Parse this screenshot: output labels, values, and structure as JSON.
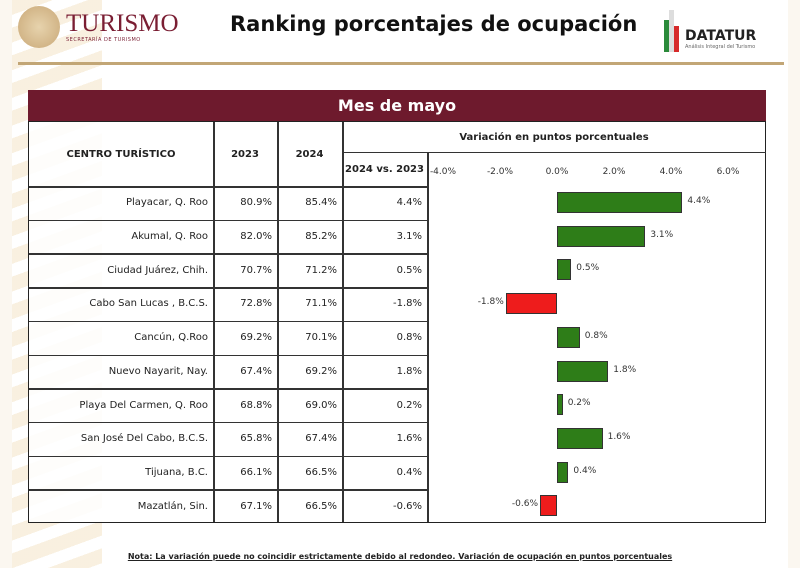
{
  "header": {
    "logo_title": "TURISMO",
    "logo_subtitle": "SECRETARÍA DE TURISMO",
    "title": "Ranking porcentajes de ocupación",
    "datatur_name": "DATATUR",
    "datatur_subtitle": "Análisis Integral del Turismo"
  },
  "table": {
    "band": "Mes de mayo",
    "col_center": "CENTRO TURÍSTICO",
    "col_2023": "2023",
    "col_2024": "2024",
    "col_variation": "Variación en puntos porcentuales",
    "col_diff": "2024 vs. 2023"
  },
  "chart_data": {
    "type": "bar",
    "orientation": "horizontal",
    "categories": [
      "Playacar, Q. Roo",
      "Akumal, Q. Roo",
      "Ciudad Juárez, Chih.",
      "Cabo San Lucas , B.C.S.",
      "Cancún, Q.Roo",
      "Nuevo Nayarit, Nay.",
      "Playa Del Carmen, Q. Roo",
      "San José Del Cabo, B.C.S.",
      "Tijuana, B.C.",
      "Mazatlán, Sin."
    ],
    "v2023": [
      "80.9%",
      "82.0%",
      "70.7%",
      "72.8%",
      "69.2%",
      "67.4%",
      "68.8%",
      "65.8%",
      "66.1%",
      "67.1%"
    ],
    "v2024": [
      "85.4%",
      "85.2%",
      "71.2%",
      "71.1%",
      "70.1%",
      "69.2%",
      "69.0%",
      "67.4%",
      "66.5%",
      "66.5%"
    ],
    "values": [
      4.4,
      3.1,
      0.5,
      -1.8,
      0.8,
      1.8,
      0.2,
      1.6,
      0.4,
      -0.6
    ],
    "value_labels": [
      "4.4%",
      "3.1%",
      "0.5%",
      "-1.8%",
      "0.8%",
      "1.8%",
      "0.2%",
      "1.6%",
      "0.4%",
      "-0.6%"
    ],
    "xlim": [
      -4,
      6
    ],
    "ticks": [
      "-4.0%",
      "-2.0%",
      "0.0%",
      "2.0%",
      "4.0%",
      "6.0%"
    ],
    "tick_values": [
      -4,
      -2,
      0,
      2,
      4,
      6
    ],
    "colors": {
      "positive": "#2e7d18",
      "negative": "#ee1c1c"
    },
    "grid": false
  },
  "note": "Nota: La variación puede no coincidir estrictamente debido al redondeo. Variación de ocupación en puntos porcentuales"
}
